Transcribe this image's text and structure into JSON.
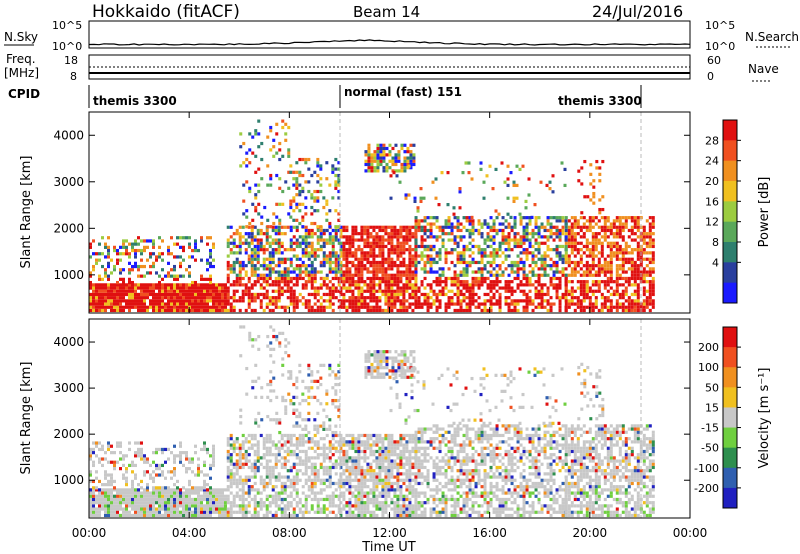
{
  "header": {
    "title": "Hokkaido (fitACF)",
    "beam": "Beam 14",
    "date": "24/Jul/2016"
  },
  "strip": {
    "nsky_label": "N.Sky",
    "nsky_ticks": [
      "10^5",
      "10^0"
    ],
    "nsearch_label": "N.Search",
    "nsearch_ticks": [
      "10^5",
      "10^0"
    ],
    "freq_label": "Freq.",
    "freq_unit": "[MHz]",
    "freq_ticks": [
      "18",
      "8"
    ],
    "nave_label": "Nave",
    "nave_ticks": [
      "60",
      "0"
    ],
    "cpid_label": "CPID",
    "cpid_segments": [
      "themis 3300",
      "normal (fast) 151",
      "themis 3300"
    ]
  },
  "chart_data": [
    {
      "type": "heatmap",
      "name": "power",
      "ylabel": "Slant Range [km]",
      "yticks": [
        1000,
        2000,
        3000,
        4000
      ],
      "ylim": [
        180,
        4500
      ],
      "xlim": [
        0,
        24
      ],
      "colorbar_label": "Power [dB]",
      "colorbar_ticks": [
        "28",
        "24",
        "20",
        "16",
        "12",
        "8",
        "4"
      ],
      "colorbar_colors": [
        "#1a1aff",
        "#2a3f9e",
        "#2e7f6e",
        "#5aa85a",
        "#9ccc40",
        "#f0c020",
        "#f09020",
        "#f05020",
        "#e01010"
      ]
    },
    {
      "type": "heatmap",
      "name": "velocity",
      "ylabel": "Slant Range [km]",
      "yticks": [
        1000,
        2000,
        3000,
        4000
      ],
      "ylim": [
        180,
        4500
      ],
      "xlim": [
        0,
        24
      ],
      "xticks": [
        "00:00",
        "04:00",
        "08:00",
        "12:00",
        "16:00",
        "20:00",
        "00:00"
      ],
      "xlabel": "Time UT",
      "colorbar_label": "Velocity [m s⁻¹]",
      "colorbar_ticks": [
        "200",
        "100",
        "50",
        "15",
        "-15",
        "-50",
        "-100",
        "-200"
      ],
      "colorbar_colors": [
        "#2020c0",
        "#2f5fb0",
        "#2e8f4e",
        "#6fcf3f",
        "#c8c8c8",
        "#f0c020",
        "#f09020",
        "#f05020",
        "#e01010"
      ]
    }
  ]
}
